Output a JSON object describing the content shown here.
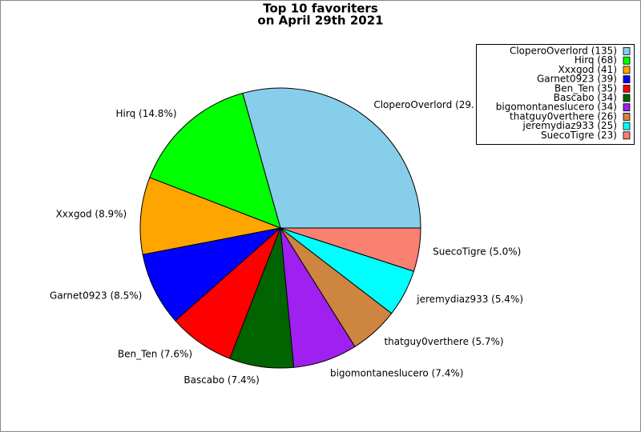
{
  "chart_data": {
    "type": "pie",
    "title": [
      "Top 10 favoriters",
      "on April 29th 2021"
    ],
    "categories": [
      "CloperoOverlord (135)",
      "Hirq (68)",
      "Xxxgod (41)",
      "Garnet0923 (39)",
      "Ben_Ten (35)",
      "Bascabo (34)",
      "bigomontaneslucero (34)",
      "thatguy0verthere (26)",
      "jeremydiaz933 (25)",
      "SuecoTigre (23)"
    ],
    "values": [
      135,
      68,
      41,
      39,
      35,
      34,
      34,
      26,
      25,
      23
    ],
    "value_labels": [
      "CloperoOverlord (29.",
      "Hirq (14.8%)",
      "Xxxgod (8.9%)",
      "Garnet0923 (8.5%)",
      "Ben_Ten (7.6%)",
      "Bascabo (7.4%)",
      "bigomontaneslucero (7.4%)",
      "thatguy0verthere (5.7%)",
      "jeremydiaz933 (5.4%)",
      "SuecoTigre (5.0%)"
    ],
    "colors": [
      "#87ceeb",
      "#00ff00",
      "#ffa500",
      "#0000ff",
      "#ff0000",
      "#006400",
      "#a020f0",
      "#cd853f",
      "#00ffff",
      "#fa8072"
    ],
    "legend": "upper right"
  }
}
